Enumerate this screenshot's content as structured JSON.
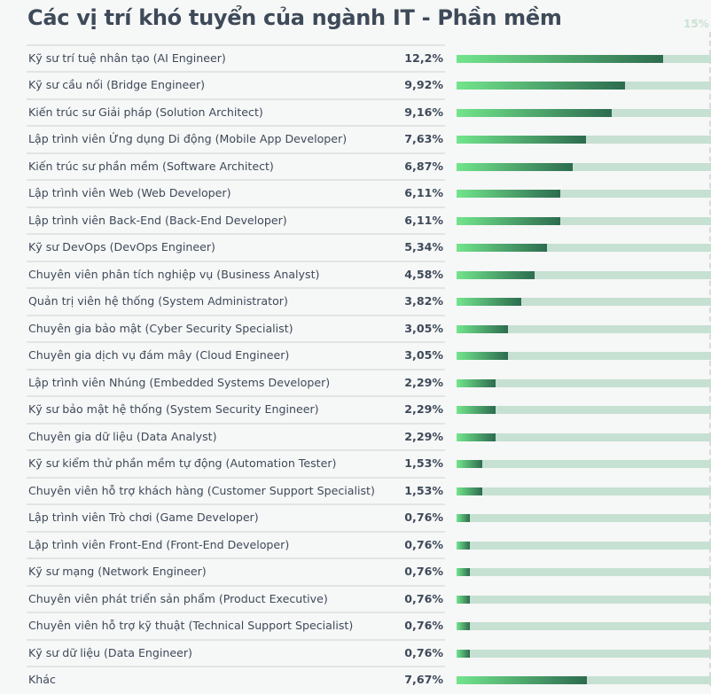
{
  "chart_data": {
    "type": "bar",
    "orientation": "horizontal",
    "title": "Các vị trí khó tuyển của ngành IT - Phần mềm",
    "xlim": [
      0,
      15
    ],
    "max_label": "15%",
    "colors": {
      "bar_start": "#72e58c",
      "bar_end": "#2d6c4f",
      "track": "#c6e0d2"
    },
    "categories": [
      "Kỹ sư trí tuệ nhân tạo (AI Engineer)",
      "Kỹ sư cầu nối (Bridge Engineer)",
      "Kiến trúc sư Giải pháp (Solution Architect)",
      "Lập trình viên Ứng dụng Di động (Mobile App Developer)",
      "Kiến trúc sư phần mềm (Software Architect)",
      "Lập trình viên Web (Web Developer)",
      "Lập trình viên Back-End (Back-End Developer)",
      "Kỹ sư DevOps (DevOps Engineer)",
      "Chuyên viên phân tích nghiệp vụ (Business Analyst)",
      "Quản trị viên hệ thống (System Administrator)",
      "Chuyên gia bảo mật (Cyber Security Specialist)",
      "Chuyên gia dịch vụ đám mây (Cloud Engineer)",
      "Lập trình viên Nhúng (Embedded Systems Developer)",
      "Kỹ sư bảo mật hệ thống (System Security Engineer)",
      "Chuyên gia dữ liệu (Data Analyst)",
      "Kỹ sư kiểm thử phần mềm tự động (Automation Tester)",
      "Chuyên viên hỗ trợ khách hàng (Customer Support Specialist)",
      "Lập trình viên Trò chơi (Game Developer)",
      "Lập trình viên Front-End (Front-End Developer)",
      "Kỹ sư mạng (Network Engineer)",
      "Chuyên viên phát triển sản phẩm (Product Executive)",
      "Chuyên viên hỗ trợ kỹ thuật (Technical Support Specialist)",
      "Kỹ sư dữ liệu (Data Engineer)",
      "Khác"
    ],
    "values": [
      12.2,
      9.92,
      9.16,
      7.63,
      6.87,
      6.11,
      6.11,
      5.34,
      4.58,
      3.82,
      3.05,
      3.05,
      2.29,
      2.29,
      2.29,
      1.53,
      1.53,
      0.76,
      0.76,
      0.76,
      0.76,
      0.76,
      0.76,
      7.67
    ],
    "value_labels": [
      "12,2%",
      "9,92%",
      "9,16%",
      "7,63%",
      "6,87%",
      "6,11%",
      "6,11%",
      "5,34%",
      "4,58%",
      "3,82%",
      "3,05%",
      "3,05%",
      "2,29%",
      "2,29%",
      "2,29%",
      "1,53%",
      "1,53%",
      "0,76%",
      "0,76%",
      "0,76%",
      "0,76%",
      "0,76%",
      "0,76%",
      "7,67%"
    ]
  }
}
